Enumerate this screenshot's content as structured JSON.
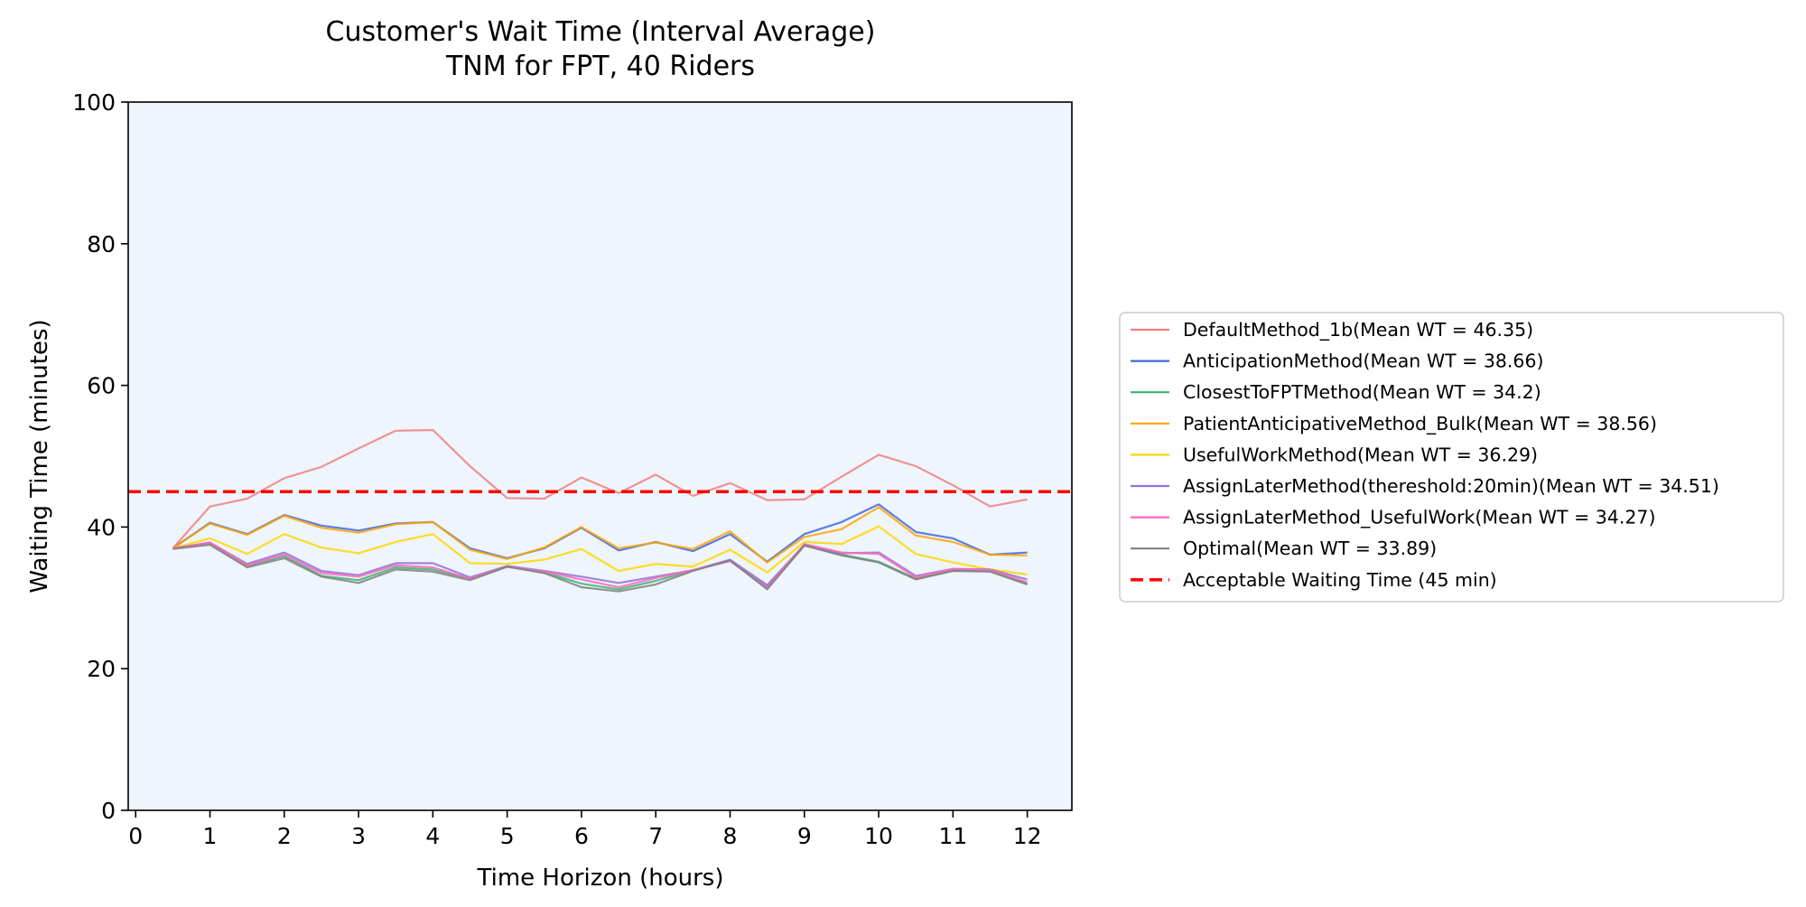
{
  "chart_data": {
    "type": "line",
    "title": "Customer's Wait Time (Interval Average)",
    "subtitle": "TNM for FPT, 40 Riders",
    "xlabel": "Time Horizon (hours)",
    "ylabel": "Waiting Time (minutes)",
    "xlim": [
      -0.1,
      12.6
    ],
    "ylim": [
      0,
      100
    ],
    "x_ticks": [
      0,
      1,
      2,
      3,
      4,
      5,
      6,
      7,
      8,
      9,
      10,
      11,
      12
    ],
    "y_ticks": [
      0,
      20,
      40,
      60,
      80,
      100
    ],
    "x": [
      0.5,
      1,
      1.5,
      2,
      2.5,
      3,
      3.5,
      4,
      4.5,
      5,
      5.5,
      6,
      6.5,
      7,
      7.5,
      8,
      8.5,
      9,
      9.5,
      10,
      10.5,
      11,
      11.5,
      12
    ],
    "plot_background": "#eef5fd",
    "grid": false,
    "legend_position": "outside-right",
    "series": [
      {
        "name": "DefaultMethod_1b(Mean WT = 46.35)",
        "color": "#f08080",
        "values": [
          37.0,
          42.9,
          44.0,
          46.9,
          48.5,
          51.1,
          53.6,
          53.7,
          48.6,
          44.1,
          44.0,
          47.0,
          44.8,
          47.4,
          44.4,
          46.2,
          43.8,
          43.9,
          47.1,
          50.2,
          48.6,
          45.9,
          42.9,
          43.9
        ]
      },
      {
        "name": "AnticipationMethod(Mean WT = 38.66)",
        "color": "#4169e1",
        "values": [
          37.0,
          40.6,
          39.0,
          41.7,
          40.2,
          39.5,
          40.5,
          40.7,
          37.0,
          35.6,
          37.0,
          39.9,
          36.7,
          37.9,
          36.6,
          39.0,
          35.1,
          39.0,
          40.7,
          43.2,
          39.3,
          38.4,
          36.1,
          36.4
        ]
      },
      {
        "name": "ClosestToFPTMethod(Mean WT = 34.2)",
        "color": "#3cb371",
        "values": [
          37.0,
          37.7,
          34.5,
          35.9,
          33.1,
          32.5,
          34.3,
          34.0,
          32.7,
          34.4,
          33.6,
          32.0,
          31.2,
          32.4,
          33.9,
          35.2,
          31.6,
          37.4,
          36.1,
          35.1,
          32.7,
          33.9,
          33.8,
          32.0
        ]
      },
      {
        "name": "PatientAnticipativeMethod_Bulk(Mean WT = 38.56)",
        "color": "#ffa500",
        "values": [
          37.0,
          40.5,
          38.9,
          41.6,
          39.9,
          39.2,
          40.4,
          40.7,
          36.8,
          35.5,
          37.1,
          40.0,
          37.0,
          37.8,
          36.9,
          39.4,
          35.0,
          38.6,
          39.7,
          42.8,
          38.8,
          37.9,
          36.1,
          36.0
        ]
      },
      {
        "name": "UsefulWorkMethod(Mean WT = 36.29)",
        "color": "#ffd700",
        "values": [
          37.0,
          38.4,
          36.2,
          39.0,
          37.1,
          36.3,
          37.9,
          39.0,
          34.9,
          34.8,
          35.4,
          36.9,
          33.8,
          34.8,
          34.4,
          36.8,
          33.6,
          37.9,
          37.6,
          40.1,
          36.2,
          35.0,
          34.0,
          33.3
        ]
      },
      {
        "name": "AssignLaterMethod(thereshold:20min)(Mean WT = 34.51)",
        "color": "#9370db",
        "values": [
          37.0,
          37.8,
          34.8,
          36.4,
          33.8,
          33.2,
          34.9,
          34.9,
          32.9,
          34.5,
          33.8,
          33.0,
          32.1,
          33.0,
          33.9,
          35.4,
          31.8,
          37.5,
          36.3,
          36.4,
          33.1,
          34.1,
          34.0,
          32.6
        ]
      },
      {
        "name": "AssignLaterMethod_UsefulWork(Mean WT = 34.27)",
        "color": "#ff69b4",
        "values": [
          37.0,
          37.8,
          34.6,
          36.1,
          33.5,
          33.0,
          34.6,
          34.3,
          32.7,
          34.4,
          33.7,
          32.6,
          31.5,
          32.8,
          33.9,
          35.2,
          31.4,
          37.6,
          36.4,
          36.2,
          32.9,
          34.1,
          33.9,
          32.2
        ]
      },
      {
        "name": "Optimal(Mean WT = 33.89)",
        "color": "#808080",
        "values": [
          36.9,
          37.5,
          34.3,
          35.6,
          33.0,
          32.1,
          34.0,
          33.7,
          32.5,
          34.4,
          33.5,
          31.5,
          30.9,
          31.9,
          33.8,
          35.3,
          31.2,
          37.4,
          36.0,
          35.0,
          32.6,
          33.8,
          33.7,
          31.9
        ]
      }
    ],
    "reference_line": {
      "name": "Acceptable Waiting Time (45 min)",
      "value": 45,
      "color": "#ff0000",
      "style": "dashed"
    }
  }
}
